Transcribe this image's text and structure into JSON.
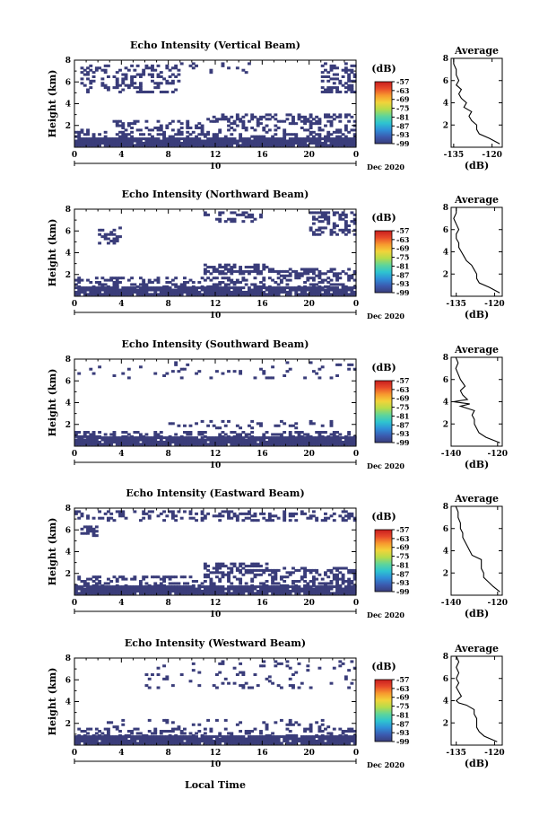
{
  "colors": {
    "echo": "#3a3d7a",
    "colorbar": [
      "#3a3d7a",
      "#3b5bb0",
      "#2f8fd8",
      "#2ec4d0",
      "#5fd59a",
      "#b6dc4a",
      "#f2d33a",
      "#f79a2e",
      "#e84a2a",
      "#c81e1e"
    ]
  },
  "shared": {
    "time_ticks": [
      "0",
      "4",
      "8",
      "12",
      "16",
      "20",
      "0"
    ],
    "date_day": "10",
    "date_label": "Dec 2020",
    "height_ticks": [
      "8",
      "6",
      "4",
      "2"
    ],
    "ylabel": "Height (km)",
    "colorbar_unit": "(dB)",
    "colorbar_ticks": [
      "-57",
      "-63",
      "-69",
      "-75",
      "-81",
      "-87",
      "-93",
      "-99"
    ],
    "avg_title": "Average",
    "avg_xlabel": "(dB)",
    "avg_height_ticks": [
      "8",
      "6",
      "4",
      "2"
    ],
    "xlabel": "Local Time"
  },
  "chart_data": [
    {
      "type": "heatmap",
      "title": "Echo Intensity (Vertical Beam)",
      "xlabel": "",
      "ylabel": "Height (km)",
      "xlim_hours": [
        0,
        24
      ],
      "ylim_km": [
        0,
        8
      ],
      "color_range_db": [
        -99,
        -57
      ],
      "echo_regions": [
        {
          "t0": 0,
          "t1": 24,
          "h0": 0.1,
          "h1": 0.9,
          "density": 0.95
        },
        {
          "t0": 0,
          "t1": 24,
          "h0": 0.9,
          "h1": 1.7,
          "density": 0.35
        },
        {
          "t0": 3,
          "t1": 24,
          "h0": 1.7,
          "h1": 2.4,
          "density": 0.25
        },
        {
          "t0": 11,
          "t1": 24,
          "h0": 2.3,
          "h1": 3.0,
          "density": 0.35
        },
        {
          "t0": 0.5,
          "t1": 9,
          "h0": 5.0,
          "h1": 7.6,
          "density": 0.3
        },
        {
          "t0": 9,
          "t1": 15,
          "h0": 6.8,
          "h1": 7.8,
          "density": 0.15
        },
        {
          "t0": 21,
          "t1": 24,
          "h0": 5.0,
          "h1": 7.8,
          "density": 0.4
        }
      ],
      "average": {
        "xlim": [
          -136,
          -116
        ],
        "xticks": [
          -135,
          -120
        ],
        "tick_labels": [
          "-135",
          "-120"
        ],
        "profile": [
          [
            0.3,
            -117
          ],
          [
            0.8,
            -121
          ],
          [
            1.2,
            -125
          ],
          [
            1.6,
            -126
          ],
          [
            2.0,
            -126
          ],
          [
            2.4,
            -128
          ],
          [
            2.8,
            -129
          ],
          [
            3.2,
            -128
          ],
          [
            3.6,
            -131
          ],
          [
            4.0,
            -130
          ],
          [
            4.4,
            -132
          ],
          [
            4.8,
            -133
          ],
          [
            5.2,
            -132
          ],
          [
            5.6,
            -134
          ],
          [
            6.0,
            -133
          ],
          [
            6.5,
            -134
          ],
          [
            7.0,
            -134
          ],
          [
            7.5,
            -135
          ],
          [
            8.0,
            -135
          ]
        ]
      }
    },
    {
      "type": "heatmap",
      "title": "Echo Intensity (Northward Beam)",
      "xlabel": "",
      "ylabel": "Height (km)",
      "xlim_hours": [
        0,
        24
      ],
      "ylim_km": [
        0,
        8
      ],
      "color_range_db": [
        -99,
        -57
      ],
      "echo_regions": [
        {
          "t0": 0,
          "t1": 24,
          "h0": 0.1,
          "h1": 0.8,
          "density": 0.95
        },
        {
          "t0": 0,
          "t1": 24,
          "h0": 0.8,
          "h1": 1.7,
          "density": 0.4
        },
        {
          "t0": 11,
          "t1": 17,
          "h0": 2.0,
          "h1": 3.0,
          "density": 0.55
        },
        {
          "t0": 17,
          "t1": 24,
          "h0": 1.8,
          "h1": 2.6,
          "density": 0.45
        },
        {
          "t0": 2,
          "t1": 4,
          "h0": 4.8,
          "h1": 6.4,
          "density": 0.3
        },
        {
          "t0": 11,
          "t1": 16,
          "h0": 6.8,
          "h1": 7.8,
          "density": 0.35
        },
        {
          "t0": 20,
          "t1": 24,
          "h0": 5.6,
          "h1": 7.8,
          "density": 0.45
        }
      ],
      "average": {
        "xlim": [
          -137,
          -117
        ],
        "xticks": [
          -135,
          -120
        ],
        "tick_labels": [
          "-135",
          "-120"
        ],
        "profile": [
          [
            0.3,
            -118
          ],
          [
            0.8,
            -122
          ],
          [
            1.2,
            -126
          ],
          [
            1.6,
            -127
          ],
          [
            2.0,
            -127
          ],
          [
            2.4,
            -128
          ],
          [
            2.8,
            -129
          ],
          [
            3.2,
            -131
          ],
          [
            3.6,
            -132
          ],
          [
            4.0,
            -133
          ],
          [
            4.4,
            -134
          ],
          [
            4.8,
            -134
          ],
          [
            5.2,
            -135
          ],
          [
            5.6,
            -135
          ],
          [
            6.0,
            -134
          ],
          [
            6.5,
            -135
          ],
          [
            7.0,
            -136
          ],
          [
            7.5,
            -135
          ],
          [
            8.0,
            -135
          ]
        ]
      }
    },
    {
      "type": "heatmap",
      "title": "Echo Intensity (Southward Beam)",
      "xlabel": "",
      "ylabel": "Height (km)",
      "xlim_hours": [
        0,
        24
      ],
      "ylim_km": [
        0,
        8
      ],
      "color_range_db": [
        -99,
        -57
      ],
      "echo_regions": [
        {
          "t0": 0,
          "t1": 24,
          "h0": 0.1,
          "h1": 0.8,
          "density": 0.95
        },
        {
          "t0": 0,
          "t1": 24,
          "h0": 0.8,
          "h1": 1.4,
          "density": 0.35
        },
        {
          "t0": 8,
          "t1": 22,
          "h0": 1.6,
          "h1": 2.3,
          "density": 0.15
        },
        {
          "t0": 0,
          "t1": 24,
          "h0": 6.2,
          "h1": 7.8,
          "density": 0.06
        }
      ],
      "average": {
        "xlim": [
          -140,
          -118
        ],
        "xticks": [
          -140,
          -120
        ],
        "tick_labels": [
          "-140",
          "-120"
        ],
        "profile": [
          [
            0.3,
            -119
          ],
          [
            0.8,
            -125
          ],
          [
            1.2,
            -128
          ],
          [
            1.6,
            -129
          ],
          [
            2.0,
            -130
          ],
          [
            2.4,
            -130
          ],
          [
            2.8,
            -131
          ],
          [
            3.2,
            -130
          ],
          [
            3.6,
            -136
          ],
          [
            3.8,
            -132
          ],
          [
            4.0,
            -139
          ],
          [
            4.2,
            -133
          ],
          [
            4.6,
            -135
          ],
          [
            5.0,
            -136
          ],
          [
            5.4,
            -134
          ],
          [
            6.0,
            -136
          ],
          [
            6.5,
            -137
          ],
          [
            7.0,
            -138
          ],
          [
            7.5,
            -137
          ],
          [
            8.0,
            -138
          ]
        ]
      }
    },
    {
      "type": "heatmap",
      "title": "Echo Intensity (Eastward Beam)",
      "xlabel": "",
      "ylabel": "Height (km)",
      "xlim_hours": [
        0,
        24
      ],
      "ylim_km": [
        0,
        8
      ],
      "color_range_db": [
        -99,
        -57
      ],
      "echo_regions": [
        {
          "t0": 0,
          "t1": 24,
          "h0": 0.1,
          "h1": 0.8,
          "density": 0.95
        },
        {
          "t0": 0,
          "t1": 24,
          "h0": 0.8,
          "h1": 1.7,
          "density": 0.35
        },
        {
          "t0": 11,
          "t1": 17,
          "h0": 1.8,
          "h1": 3.0,
          "density": 0.5
        },
        {
          "t0": 17,
          "t1": 24,
          "h0": 1.8,
          "h1": 2.6,
          "density": 0.45
        },
        {
          "t0": 0.5,
          "t1": 2,
          "h0": 5.4,
          "h1": 6.4,
          "density": 0.4
        },
        {
          "t0": 0,
          "t1": 24,
          "h0": 6.8,
          "h1": 7.8,
          "density": 0.3
        }
      ],
      "average": {
        "xlim": [
          -140,
          -118
        ],
        "xticks": [
          -140,
          -120
        ],
        "tick_labels": [
          "-140",
          "-120"
        ],
        "profile": [
          [
            0.3,
            -119
          ],
          [
            0.8,
            -122
          ],
          [
            1.2,
            -124
          ],
          [
            1.6,
            -126
          ],
          [
            2.0,
            -126
          ],
          [
            2.4,
            -127
          ],
          [
            2.8,
            -127
          ],
          [
            3.2,
            -127
          ],
          [
            3.6,
            -131
          ],
          [
            4.0,
            -132
          ],
          [
            4.4,
            -133
          ],
          [
            4.8,
            -134
          ],
          [
            5.2,
            -135
          ],
          [
            5.6,
            -135
          ],
          [
            6.0,
            -136
          ],
          [
            6.5,
            -136
          ],
          [
            7.0,
            -137
          ],
          [
            7.5,
            -137
          ],
          [
            8.0,
            -138
          ]
        ]
      }
    },
    {
      "type": "heatmap",
      "title": "Echo Intensity (Westward Beam)",
      "xlabel": "Local Time",
      "ylabel": "Height (km)",
      "xlim_hours": [
        0,
        24
      ],
      "ylim_km": [
        0,
        8
      ],
      "color_range_db": [
        -99,
        -57
      ],
      "echo_regions": [
        {
          "t0": 0,
          "t1": 24,
          "h0": 0.1,
          "h1": 0.8,
          "density": 0.95
        },
        {
          "t0": 0,
          "t1": 24,
          "h0": 0.8,
          "h1": 1.6,
          "density": 0.35
        },
        {
          "t0": 2,
          "t1": 22,
          "h0": 1.6,
          "h1": 2.3,
          "density": 0.15
        },
        {
          "t0": 6,
          "t1": 24,
          "h0": 5.2,
          "h1": 7.8,
          "density": 0.08
        }
      ],
      "average": {
        "xlim": [
          -137,
          -117
        ],
        "xticks": [
          -135,
          -120
        ],
        "tick_labels": [
          "-135",
          "-120"
        ],
        "profile": [
          [
            0.3,
            -119
          ],
          [
            0.8,
            -124
          ],
          [
            1.2,
            -126
          ],
          [
            1.6,
            -127
          ],
          [
            2.0,
            -127
          ],
          [
            2.4,
            -127
          ],
          [
            2.8,
            -128
          ],
          [
            3.2,
            -128
          ],
          [
            3.6,
            -131
          ],
          [
            3.8,
            -134
          ],
          [
            4.0,
            -135
          ],
          [
            4.4,
            -133
          ],
          [
            4.8,
            -134
          ],
          [
            5.2,
            -135
          ],
          [
            5.6,
            -134
          ],
          [
            6.0,
            -135
          ],
          [
            6.5,
            -134
          ],
          [
            7.0,
            -135
          ],
          [
            7.5,
            -134
          ],
          [
            8.0,
            -135
          ]
        ]
      }
    }
  ]
}
